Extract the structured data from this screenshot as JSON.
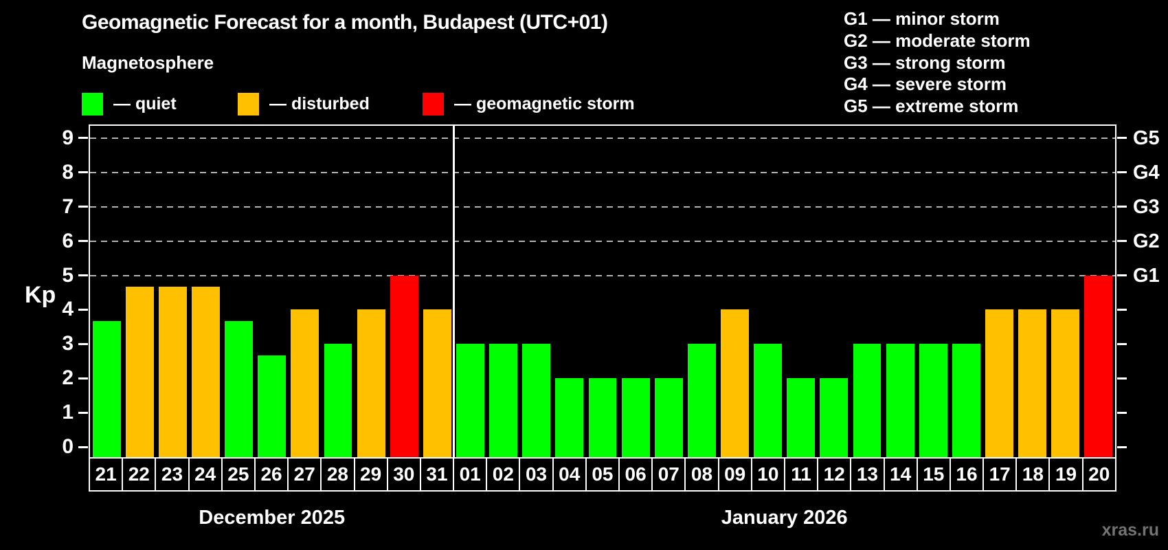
{
  "title": "Geomagnetic Forecast for a month, Budapest (UTC+01)",
  "subtitle": "Magnetosphere",
  "legend": {
    "items": [
      {
        "key": "quiet",
        "label": "— quiet",
        "color": "#00ff00"
      },
      {
        "key": "disturbed",
        "label": "— disturbed",
        "color": "#ffc000"
      },
      {
        "key": "storm",
        "label": "— geomagnetic storm",
        "color": "#ff0000"
      }
    ]
  },
  "storm_legend": {
    "items": [
      "G1 — minor storm",
      "G2 — moderate storm",
      "G3 — strong storm",
      "G4 — severe storm",
      "G5 — extreme storm"
    ]
  },
  "watermark": "xras.ru",
  "chart_data": {
    "type": "bar",
    "y_axis_label": "Kp",
    "y_ticks": [
      0,
      1,
      2,
      3,
      4,
      5,
      6,
      7,
      8,
      9
    ],
    "ylim_drawn": [
      -0.34,
      9.36
    ],
    "gridlines_at": [
      5,
      6,
      7,
      8,
      9
    ],
    "grid_style": "dashed",
    "right_axis_labels": [
      {
        "value": 5,
        "label": "G1"
      },
      {
        "value": 6,
        "label": "G2"
      },
      {
        "value": 7,
        "label": "G3"
      },
      {
        "value": 8,
        "label": "G4"
      },
      {
        "value": 9,
        "label": "G5"
      }
    ],
    "status_colors": {
      "quiet": "#00ff00",
      "disturbed": "#ffc000",
      "storm": "#ff0000"
    },
    "months": [
      {
        "label": "December 2025",
        "days": [
          {
            "date": "21",
            "kp": 3.67,
            "status": "quiet"
          },
          {
            "date": "22",
            "kp": 4.67,
            "status": "disturbed"
          },
          {
            "date": "23",
            "kp": 4.67,
            "status": "disturbed"
          },
          {
            "date": "24",
            "kp": 4.67,
            "status": "disturbed"
          },
          {
            "date": "25",
            "kp": 3.67,
            "status": "quiet"
          },
          {
            "date": "26",
            "kp": 2.67,
            "status": "quiet"
          },
          {
            "date": "27",
            "kp": 4.0,
            "status": "disturbed"
          },
          {
            "date": "28",
            "kp": 3.0,
            "status": "quiet"
          },
          {
            "date": "29",
            "kp": 4.0,
            "status": "disturbed"
          },
          {
            "date": "30",
            "kp": 5.0,
            "status": "storm"
          },
          {
            "date": "31",
            "kp": 4.0,
            "status": "disturbed"
          }
        ]
      },
      {
        "label": "January 2026",
        "days": [
          {
            "date": "01",
            "kp": 3.0,
            "status": "quiet"
          },
          {
            "date": "02",
            "kp": 3.0,
            "status": "quiet"
          },
          {
            "date": "03",
            "kp": 3.0,
            "status": "quiet"
          },
          {
            "date": "04",
            "kp": 2.0,
            "status": "quiet"
          },
          {
            "date": "05",
            "kp": 2.0,
            "status": "quiet"
          },
          {
            "date": "06",
            "kp": 2.0,
            "status": "quiet"
          },
          {
            "date": "07",
            "kp": 2.0,
            "status": "quiet"
          },
          {
            "date": "08",
            "kp": 3.0,
            "status": "quiet"
          },
          {
            "date": "09",
            "kp": 4.0,
            "status": "disturbed"
          },
          {
            "date": "10",
            "kp": 3.0,
            "status": "quiet"
          },
          {
            "date": "11",
            "kp": 2.0,
            "status": "quiet"
          },
          {
            "date": "12",
            "kp": 2.0,
            "status": "quiet"
          },
          {
            "date": "13",
            "kp": 3.0,
            "status": "quiet"
          },
          {
            "date": "14",
            "kp": 3.0,
            "status": "quiet"
          },
          {
            "date": "15",
            "kp": 3.0,
            "status": "quiet"
          },
          {
            "date": "16",
            "kp": 3.0,
            "status": "quiet"
          },
          {
            "date": "17",
            "kp": 4.0,
            "status": "disturbed"
          },
          {
            "date": "18",
            "kp": 4.0,
            "status": "disturbed"
          },
          {
            "date": "19",
            "kp": 4.0,
            "status": "disturbed"
          },
          {
            "date": "20",
            "kp": 5.0,
            "status": "storm"
          }
        ]
      }
    ]
  }
}
